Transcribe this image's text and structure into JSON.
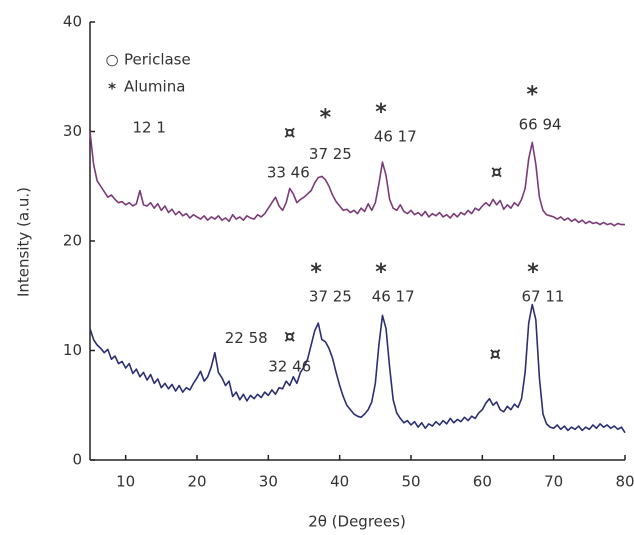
{
  "chart_data": {
    "type": "line",
    "xlabel": "2θ (Degrees)",
    "ylabel": "Intensity (a.u.)",
    "xlim": [
      5,
      80
    ],
    "xticks": [
      10,
      20,
      30,
      40,
      50,
      60,
      70,
      80
    ],
    "ylim": [
      0,
      40
    ],
    "yticks": [
      0,
      10,
      20,
      30,
      40
    ],
    "grid": false,
    "legend_position": "upper left",
    "legend": [
      {
        "symbol": "○",
        "label": "Periclase"
      },
      {
        "symbol": "*",
        "label": "Alumina"
      }
    ],
    "x": [
      5,
      5.5,
      6,
      6.5,
      7,
      7.5,
      8,
      8.5,
      9,
      9.5,
      10,
      10.5,
      11,
      11.5,
      12,
      12.5,
      13,
      13.5,
      14,
      14.5,
      15,
      15.5,
      16,
      16.5,
      17,
      17.5,
      18,
      18.5,
      19,
      19.5,
      20,
      20.5,
      21,
      21.5,
      22,
      22.5,
      23,
      23.5,
      24,
      24.5,
      25,
      25.5,
      26,
      26.5,
      27,
      27.5,
      28,
      28.5,
      29,
      29.5,
      30,
      30.5,
      31,
      31.5,
      32,
      32.5,
      33,
      33.5,
      34,
      34.5,
      35,
      35.5,
      36,
      36.5,
      37,
      37.5,
      38,
      38.5,
      39,
      39.5,
      40,
      40.5,
      41,
      41.5,
      42,
      42.5,
      43,
      43.5,
      44,
      44.5,
      45,
      45.5,
      46,
      46.5,
      47,
      47.5,
      48,
      48.5,
      49,
      49.5,
      50,
      50.5,
      51,
      51.5,
      52,
      52.5,
      53,
      53.5,
      54,
      54.5,
      55,
      55.5,
      56,
      56.5,
      57,
      57.5,
      58,
      58.5,
      59,
      59.5,
      60,
      60.5,
      61,
      61.5,
      62,
      62.5,
      63,
      63.5,
      64,
      64.5,
      65,
      65.5,
      66,
      66.5,
      67,
      67.5,
      68,
      68.5,
      69,
      69.5,
      70,
      70.5,
      71,
      71.5,
      72,
      72.5,
      73,
      73.5,
      74,
      74.5,
      75,
      75.5,
      76,
      76.5,
      77,
      77.5,
      78,
      78.5,
      79,
      79.5,
      80
    ],
    "series": [
      {
        "color": "#7b3a78",
        "values": [
          30,
          27,
          25.5,
          25,
          24.5,
          24,
          24.2,
          23.8,
          23.5,
          23.6,
          23.3,
          23.5,
          23.2,
          23.4,
          24.6,
          23.3,
          23.2,
          23.5,
          23,
          23.4,
          22.8,
          23.2,
          22.6,
          22.9,
          22.4,
          22.7,
          22.3,
          22.5,
          22.1,
          22.4,
          22.2,
          22,
          22.3,
          21.9,
          22.2,
          22,
          22.3,
          21.9,
          22.1,
          21.8,
          22.4,
          22,
          22.2,
          21.9,
          22.3,
          22.1,
          22,
          22.4,
          22.2,
          22.5,
          23,
          23.5,
          24,
          23.2,
          22.8,
          23.5,
          24.8,
          24.3,
          23.5,
          23.8,
          24,
          24.3,
          24.6,
          25.3,
          25.8,
          25.9,
          25.6,
          25,
          24.2,
          23.6,
          23.2,
          22.8,
          22.9,
          22.6,
          22.8,
          22.5,
          23,
          22.7,
          23.4,
          22.8,
          23.5,
          25.2,
          27.2,
          26,
          23.8,
          23,
          22.8,
          23.3,
          22.7,
          22.5,
          22.8,
          22.4,
          22.6,
          22.3,
          22.7,
          22.2,
          22.5,
          22.3,
          22.6,
          22.2,
          22.4,
          22.1,
          22.5,
          22.2,
          22.6,
          22.4,
          22.8,
          22.5,
          23,
          22.8,
          23.2,
          23.5,
          23.2,
          23.8,
          23.3,
          23.7,
          22.9,
          23.3,
          23,
          23.5,
          23.2,
          23.8,
          24.8,
          27.5,
          29,
          27,
          24,
          22.8,
          22.4,
          22.3,
          22.2,
          22,
          22.2,
          21.9,
          22.1,
          21.8,
          22,
          21.7,
          21.9,
          21.6,
          21.8,
          21.6,
          21.7,
          21.5,
          21.7,
          21.5,
          21.6,
          21.4,
          21.6,
          21.5,
          21.5
        ]
      },
      {
        "color": "#2b2f72",
        "values": [
          12,
          11,
          10.5,
          10.2,
          9.8,
          10.1,
          9.2,
          9.5,
          8.8,
          9,
          8.4,
          8.8,
          7.9,
          8.3,
          7.6,
          8,
          7.3,
          7.8,
          7,
          7.4,
          6.6,
          7,
          6.5,
          6.9,
          6.3,
          6.8,
          6.2,
          6.6,
          6.4,
          7,
          7.5,
          8.1,
          7.2,
          7.6,
          8.5,
          9.8,
          8,
          7.5,
          6.8,
          7.2,
          5.8,
          6.2,
          5.5,
          6,
          5.4,
          5.9,
          5.6,
          6,
          5.7,
          6.2,
          5.9,
          6.4,
          6,
          6.6,
          6.5,
          7.2,
          6.8,
          7.6,
          7,
          8,
          8.5,
          9.2,
          10.5,
          11.8,
          12.5,
          11,
          10.8,
          10.2,
          9.3,
          8,
          6.8,
          5.8,
          5,
          4.6,
          4.2,
          4,
          3.9,
          4.2,
          4.6,
          5.3,
          7,
          10.5,
          13.2,
          12,
          8.5,
          5.5,
          4.3,
          3.8,
          3.4,
          3.6,
          3.2,
          3.5,
          3,
          3.4,
          2.9,
          3.3,
          3.1,
          3.5,
          3.2,
          3.6,
          3.3,
          3.8,
          3.4,
          3.7,
          3.5,
          3.9,
          3.6,
          4,
          3.8,
          4.3,
          4.6,
          5.2,
          5.6,
          5,
          5.3,
          4.6,
          4.4,
          4.9,
          4.6,
          5.1,
          4.8,
          5.6,
          8,
          12.5,
          14.2,
          12.8,
          7.5,
          4.2,
          3.3,
          3,
          2.9,
          3.2,
          2.8,
          3.1,
          2.7,
          3,
          2.8,
          3.1,
          2.7,
          3,
          2.8,
          3.2,
          2.9,
          3.3,
          3,
          3.2,
          2.9,
          3.1,
          2.8,
          3,
          2.5
        ]
      }
    ],
    "annotations": [
      {
        "text": "12 1",
        "x": 13.3,
        "y": 30.3
      },
      {
        "text": "¤",
        "x": 33.0,
        "y": 29.8
      },
      {
        "text": "*",
        "x": 38.0,
        "y": 31.2
      },
      {
        "text": "*",
        "x": 45.8,
        "y": 31.7
      },
      {
        "text": "*",
        "x": 67.0,
        "y": 33.3
      },
      {
        "text": "¤",
        "x": 62.0,
        "y": 26.2
      },
      {
        "text": "33 46",
        "x": 32.8,
        "y": 26.2
      },
      {
        "text": "37 25",
        "x": 38.7,
        "y": 27.9
      },
      {
        "text": "46 17",
        "x": 47.8,
        "y": 29.5
      },
      {
        "text": "66 94",
        "x": 68.1,
        "y": 30.6
      },
      {
        "text": "*",
        "x": 36.7,
        "y": 17.1
      },
      {
        "text": "*",
        "x": 45.8,
        "y": 17.1
      },
      {
        "text": "*",
        "x": 67.1,
        "y": 17.1
      },
      {
        "text": "37 25",
        "x": 38.7,
        "y": 14.9
      },
      {
        "text": "46 17",
        "x": 47.5,
        "y": 14.9
      },
      {
        "text": "67 11",
        "x": 68.5,
        "y": 14.9
      },
      {
        "text": "22 58",
        "x": 26.9,
        "y": 11.1
      },
      {
        "text": "¤",
        "x": 33.0,
        "y": 11.2
      },
      {
        "text": "32 46",
        "x": 33.0,
        "y": 8.5
      },
      {
        "text": "¤",
        "x": 61.8,
        "y": 9.6
      }
    ]
  }
}
